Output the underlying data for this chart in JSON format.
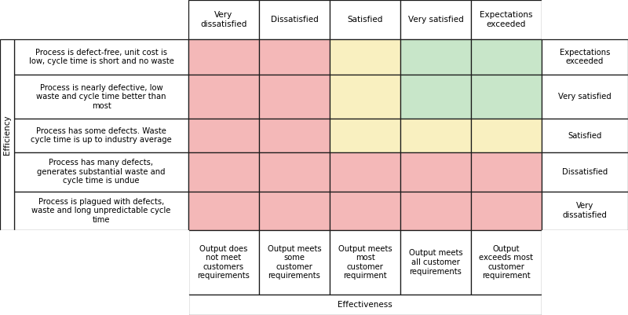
{
  "col_headers": [
    "Very\ndissatisfied",
    "Dissatisfied",
    "Satisfied",
    "Very satisfied",
    "Expectations\nexceeded"
  ],
  "row_labels": [
    "Process is defect-free, unit cost is\nlow, cycle time is short and no waste",
    "Process is nearly defective, low\nwaste and cycle time better than\nmost",
    "Process has some defects. Waste\ncycle time is up to industry average",
    "Process has many defects,\ngenerates substantial waste and\ncycle time is undue",
    "Process is plagued with defects,\nwaste and long unpredictable cycle\ntime"
  ],
  "row_right_labels": [
    "Expectations\nexceeded",
    "Very satisfied",
    "Satisfied",
    "Dissatisfied",
    "Very\ndissatisfied"
  ],
  "bottom_labels": [
    "Output does\nnot meet\ncustomers\nrequirements",
    "Output meets\nsome\ncustomer\nrequirements",
    "Output meets\nmost\ncustomer\nrequirment",
    "Output meets\nall customer\nrequirements",
    "Output\nexceeds most\ncustomer\nrequirement"
  ],
  "bottom_axis_label": "Effectiveness",
  "left_axis_label": "Efficiency",
  "cell_colors": [
    [
      "#f4b8b8",
      "#f4b8b8",
      "#f9f0c0",
      "#c8e6c9",
      "#c8e6c9"
    ],
    [
      "#f4b8b8",
      "#f4b8b8",
      "#f9f0c0",
      "#c8e6c9",
      "#c8e6c9"
    ],
    [
      "#f4b8b8",
      "#f4b8b8",
      "#f9f0c0",
      "#f9f0c0",
      "#f9f0c0"
    ],
    [
      "#f4b8b8",
      "#f4b8b8",
      "#f4b8b8",
      "#f4b8b8",
      "#f4b8b8"
    ],
    [
      "#f4b8b8",
      "#f4b8b8",
      "#f4b8b8",
      "#f4b8b8",
      "#f4b8b8"
    ]
  ],
  "background_color": "#ffffff",
  "border_color": "#1a1a1a",
  "fontsize": 7.2,
  "header_fontsize": 7.5,
  "fig_width": 8.0,
  "fig_height": 4.01,
  "dpi": 100
}
